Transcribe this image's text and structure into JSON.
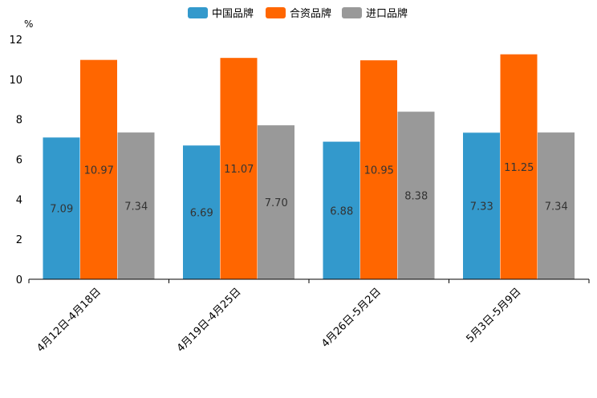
{
  "chart_data": {
    "type": "bar",
    "title": "",
    "xlabel": "",
    "ylabel": "%",
    "ylim": [
      0,
      12
    ],
    "yticks": [
      "0",
      "2",
      "4",
      "6",
      "8",
      "10",
      "12"
    ],
    "categories": [
      "4月12日-4月18日",
      "4月19日-4月25日",
      "4月26日-5月2日",
      "5月3日-5月9日"
    ],
    "series": [
      {
        "name": "中国品牌",
        "color": "#3399CC",
        "values": [
          7.09,
          6.69,
          6.88,
          7.33
        ],
        "labels": [
          "7.09",
          "6.69",
          "6.88",
          "7.33"
        ]
      },
      {
        "name": "合资品牌",
        "color": "#FF6600",
        "values": [
          10.97,
          11.07,
          10.95,
          11.25
        ],
        "labels": [
          "10.97",
          "11.07",
          "10.95",
          "11.25"
        ]
      },
      {
        "name": "进口品牌",
        "color": "#999999",
        "values": [
          7.34,
          7.7,
          8.38,
          7.34
        ],
        "labels": [
          "7.34",
          "7.70",
          "8.38",
          "7.34"
        ]
      }
    ],
    "legend_position": "top-center",
    "grid": false
  }
}
